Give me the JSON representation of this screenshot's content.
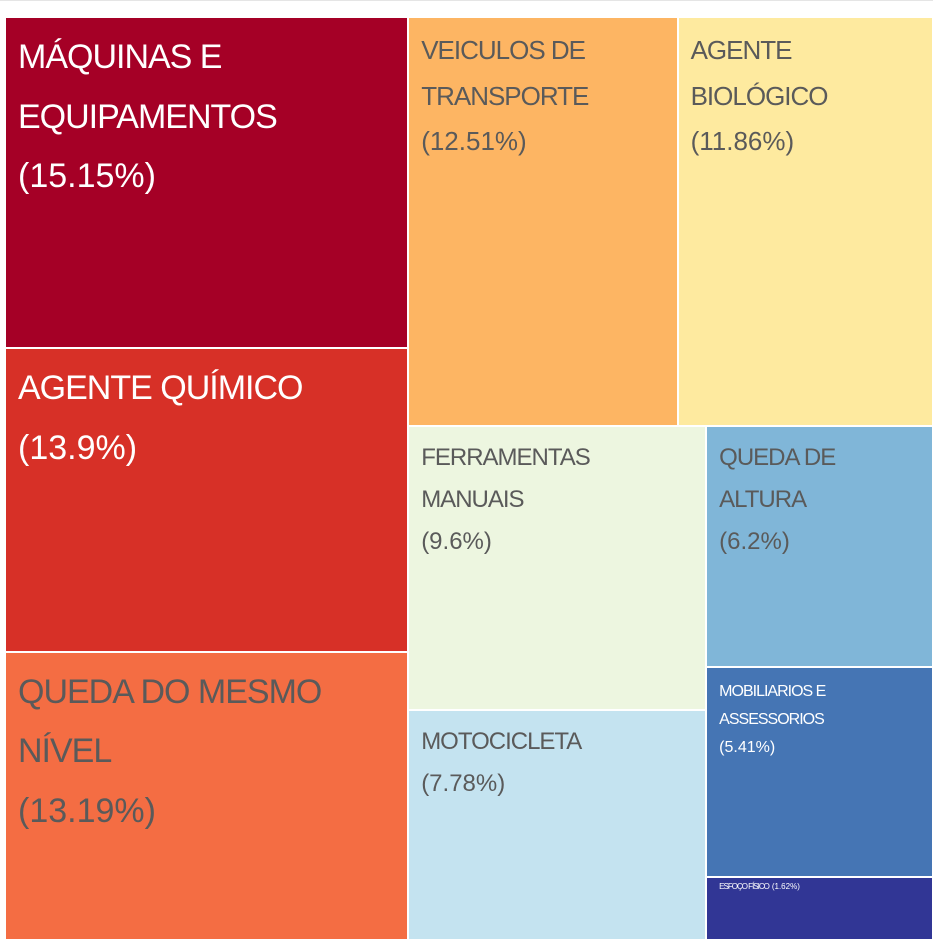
{
  "chart_data": {
    "type": "treemap",
    "categories": [
      "MÁQUINAS E EQUIPAMENTOS",
      "AGENTE QUÍMICO",
      "QUEDA DO MESMO NÍVEL",
      "VEICULOS DE TRANSPORTE",
      "AGENTE BIOLÓGICO",
      "FERRAMENTAS MANUAIS",
      "MOTOCICLETA",
      "QUEDA DE ALTURA",
      "MOBILIARIOS E ASSESSORIOS",
      "ESFOÇO FÍSICO"
    ],
    "values": [
      15.15,
      13.9,
      13.19,
      12.51,
      11.86,
      9.6,
      7.78,
      6.2,
      5.41,
      1.62
    ],
    "value_labels": [
      "(15.15%)",
      "(13.9%)",
      "(13.19%)",
      "(12.51%)",
      "(11.86%)",
      "(9.6%)",
      "(7.78%)",
      "(6.2%)",
      "(5.41%)",
      "(1.62%)"
    ],
    "colors": [
      "#a50026",
      "#d73027",
      "#f46d43",
      "#fdb563",
      "#feea9f",
      "#edf6e0",
      "#c4e3f0",
      "#80b6d8",
      "#4575b4",
      "#313695"
    ]
  }
}
